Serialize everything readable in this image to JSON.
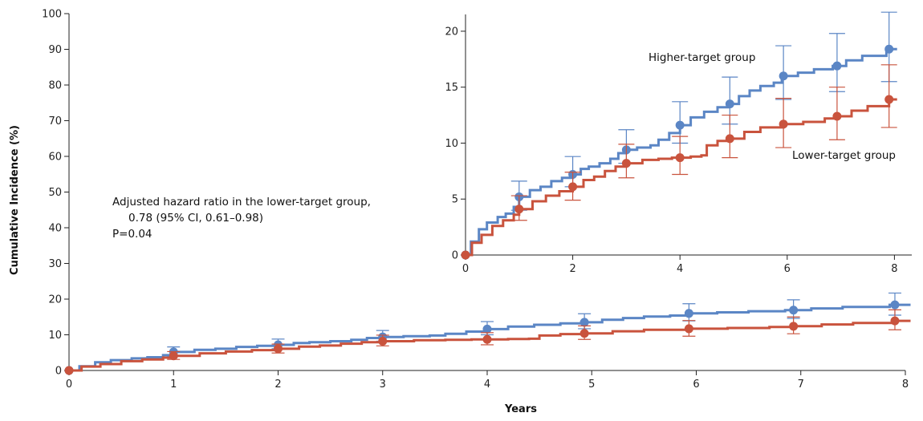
{
  "chart_data": [
    {
      "id": "main",
      "type": "line",
      "xlabel": "Years",
      "ylabel": "Cumulative Incidence (%)",
      "xlim": [
        0,
        8
      ],
      "ylim": [
        0,
        100
      ],
      "xticks": [
        0,
        1,
        2,
        3,
        4,
        5,
        6,
        7,
        8
      ],
      "yticks": [
        0,
        10,
        20,
        30,
        40,
        50,
        60,
        70,
        80,
        90,
        100
      ],
      "grid": false,
      "step": true,
      "annotation": [
        "Adjusted hazard ratio in the lower-target group,",
        "0.78 (95% CI, 0.61–0.98)",
        "P=0.04"
      ],
      "series": [
        {
          "key": "higher",
          "color": "#5b86c5",
          "curve": [
            [
              0,
              0
            ],
            [
              0.1,
              1.2
            ],
            [
              0.25,
              2.3
            ],
            [
              0.4,
              2.9
            ],
            [
              0.6,
              3.4
            ],
            [
              0.75,
              3.7
            ],
            [
              0.9,
              4.3
            ],
            [
              1,
              5.2
            ],
            [
              1.2,
              5.8
            ],
            [
              1.4,
              6.1
            ],
            [
              1.6,
              6.6
            ],
            [
              1.8,
              6.9
            ],
            [
              2,
              7.2
            ],
            [
              2.15,
              7.7
            ],
            [
              2.3,
              7.9
            ],
            [
              2.5,
              8.2
            ],
            [
              2.7,
              8.6
            ],
            [
              2.85,
              9.1
            ],
            [
              3,
              9.4
            ],
            [
              3.2,
              9.6
            ],
            [
              3.45,
              9.8
            ],
            [
              3.6,
              10.3
            ],
            [
              3.8,
              10.9
            ],
            [
              4,
              11.6
            ],
            [
              4.2,
              12.3
            ],
            [
              4.45,
              12.8
            ],
            [
              4.7,
              13.2
            ],
            [
              4.9,
              13.5
            ],
            [
              5.1,
              14.2
            ],
            [
              5.3,
              14.7
            ],
            [
              5.5,
              15.1
            ],
            [
              5.75,
              15.4
            ],
            [
              5.9,
              16
            ],
            [
              6.2,
              16.3
            ],
            [
              6.5,
              16.6
            ],
            [
              6.85,
              16.9
            ],
            [
              7.1,
              17.4
            ],
            [
              7.4,
              17.8
            ],
            [
              7.85,
              18.4
            ],
            [
              8.05,
              18.4
            ]
          ],
          "points": [
            {
              "x": 0,
              "y": 0
            },
            {
              "x": 1,
              "y": 5.2,
              "lo": 4.0,
              "hi": 6.6
            },
            {
              "x": 2,
              "y": 7.2,
              "lo": 6.1,
              "hi": 8.8
            },
            {
              "x": 3,
              "y": 9.4,
              "lo": 8.2,
              "hi": 11.2
            },
            {
              "x": 4,
              "y": 11.6,
              "lo": 10.0,
              "hi": 13.7
            },
            {
              "x": 4.93,
              "y": 13.5,
              "lo": 11.7,
              "hi": 15.9
            },
            {
              "x": 5.93,
              "y": 16.0,
              "lo": 13.9,
              "hi": 18.7
            },
            {
              "x": 6.93,
              "y": 16.9,
              "lo": 14.6,
              "hi": 19.8
            },
            {
              "x": 7.9,
              "y": 18.4,
              "lo": 15.5,
              "hi": 21.7
            }
          ]
        },
        {
          "key": "lower",
          "color": "#c9533d",
          "curve": [
            [
              0,
              0
            ],
            [
              0.12,
              1.1
            ],
            [
              0.3,
              1.8
            ],
            [
              0.5,
              2.6
            ],
            [
              0.7,
              3.1
            ],
            [
              0.9,
              3.6
            ],
            [
              1,
              4.1
            ],
            [
              1.25,
              4.8
            ],
            [
              1.5,
              5.3
            ],
            [
              1.75,
              5.7
            ],
            [
              2,
              6.1
            ],
            [
              2.2,
              6.7
            ],
            [
              2.4,
              7.0
            ],
            [
              2.6,
              7.5
            ],
            [
              2.8,
              7.9
            ],
            [
              3,
              8.2
            ],
            [
              3.3,
              8.5
            ],
            [
              3.6,
              8.6
            ],
            [
              3.85,
              8.7
            ],
            [
              4,
              8.7
            ],
            [
              4.2,
              8.8
            ],
            [
              4.4,
              8.9
            ],
            [
              4.5,
              9.8
            ],
            [
              4.7,
              10.2
            ],
            [
              4.93,
              10.4
            ],
            [
              5.2,
              11.0
            ],
            [
              5.5,
              11.4
            ],
            [
              5.93,
              11.7
            ],
            [
              6.3,
              11.9
            ],
            [
              6.7,
              12.2
            ],
            [
              6.93,
              12.4
            ],
            [
              7.2,
              12.9
            ],
            [
              7.5,
              13.3
            ],
            [
              7.9,
              13.9
            ],
            [
              8.05,
              13.9
            ]
          ],
          "points": [
            {
              "x": 0,
              "y": 0
            },
            {
              "x": 1,
              "y": 4.1,
              "lo": 3.1,
              "hi": 5.3
            },
            {
              "x": 2,
              "y": 6.1,
              "lo": 4.9,
              "hi": 7.4
            },
            {
              "x": 3,
              "y": 8.2,
              "lo": 6.9,
              "hi": 9.9
            },
            {
              "x": 4,
              "y": 8.7,
              "lo": 7.2,
              "hi": 10.6
            },
            {
              "x": 4.93,
              "y": 10.4,
              "lo": 8.7,
              "hi": 12.5
            },
            {
              "x": 5.93,
              "y": 11.7,
              "lo": 9.6,
              "hi": 14.0
            },
            {
              "x": 6.93,
              "y": 12.4,
              "lo": 10.3,
              "hi": 15.0
            },
            {
              "x": 7.9,
              "y": 13.9,
              "lo": 11.4,
              "hi": 17.0
            }
          ]
        }
      ]
    },
    {
      "id": "inset",
      "type": "line",
      "xlim": [
        0,
        8.4
      ],
      "ylim": [
        0,
        21.5
      ],
      "xticks": [
        0,
        2,
        4,
        6,
        8
      ],
      "yticks": [
        0,
        5,
        10,
        15,
        20
      ],
      "grid": false,
      "step": true,
      "series_labels": [
        {
          "key": "higher",
          "text": "Higher-target group"
        },
        {
          "key": "lower",
          "text": "Lower-target group"
        }
      ]
    }
  ]
}
